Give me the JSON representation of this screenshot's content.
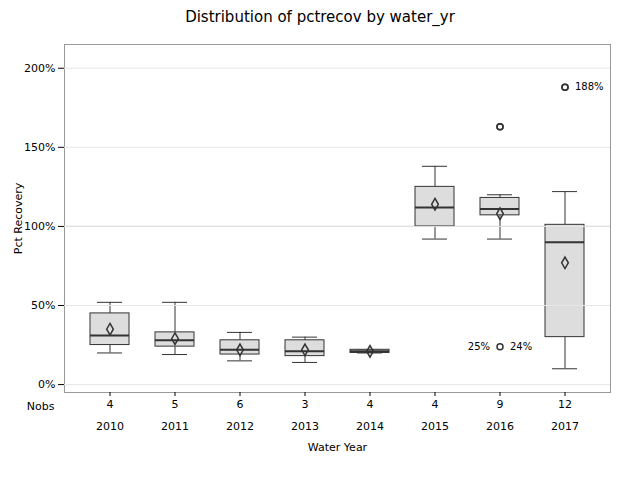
{
  "chart_data": {
    "type": "box",
    "title": "Distribution of pctrecov by water_yr",
    "x_label": "Water Year",
    "y_label": "Pct Recovery",
    "categories": [
      "2010",
      "2011",
      "2012",
      "2013",
      "2014",
      "2015",
      "2016",
      "2017"
    ],
    "nobs_label": "Nobs",
    "nobs": [
      4,
      5,
      6,
      3,
      4,
      4,
      9,
      12
    ],
    "boxes": [
      {
        "q1": 25,
        "median": 31,
        "q3": 45,
        "whislo": 20,
        "whishi": 52,
        "mean": 35,
        "fliers": []
      },
      {
        "q1": 24,
        "median": 28,
        "q3": 33,
        "whislo": 19,
        "whishi": 52,
        "mean": 29,
        "fliers": []
      },
      {
        "q1": 19,
        "median": 22,
        "q3": 28,
        "whislo": 15,
        "whishi": 33,
        "mean": 22,
        "fliers": []
      },
      {
        "q1": 18,
        "median": 21,
        "q3": 28,
        "whislo": 14,
        "whishi": 30,
        "mean": 22,
        "fliers": []
      },
      {
        "q1": 20,
        "median": 21,
        "q3": 22,
        "whislo": 20,
        "whishi": 22,
        "mean": 21,
        "fliers": []
      },
      {
        "q1": 100,
        "median": 112,
        "q3": 125,
        "whislo": 92,
        "whishi": 138,
        "mean": 114,
        "fliers": []
      },
      {
        "q1": 107,
        "median": 111,
        "q3": 118,
        "whislo": 92,
        "whishi": 120,
        "mean": 108,
        "fliers": [
          163
        ]
      },
      {
        "q1": 30,
        "median": 90,
        "q3": 101,
        "whislo": 10,
        "whishi": 122,
        "mean": 77,
        "fliers": [
          188
        ]
      }
    ],
    "annotations": [
      {
        "x": "2016",
        "y": 24,
        "marker": "circle",
        "labels": [
          "25%",
          "24%"
        ]
      },
      {
        "x": "2016",
        "y": 163,
        "marker": "circle",
        "labels": []
      },
      {
        "x": "2017",
        "y": 188,
        "marker": "circle",
        "labels": [
          "188%"
        ]
      }
    ],
    "reference_line": 100,
    "ylim": [
      -5,
      215
    ],
    "yticks": [
      {
        "value": 0,
        "label": "0%"
      },
      {
        "value": 50,
        "label": "50%"
      },
      {
        "value": 100,
        "label": "100%"
      },
      {
        "value": 150,
        "label": "150%"
      },
      {
        "value": 200,
        "label": "200%"
      }
    ]
  }
}
